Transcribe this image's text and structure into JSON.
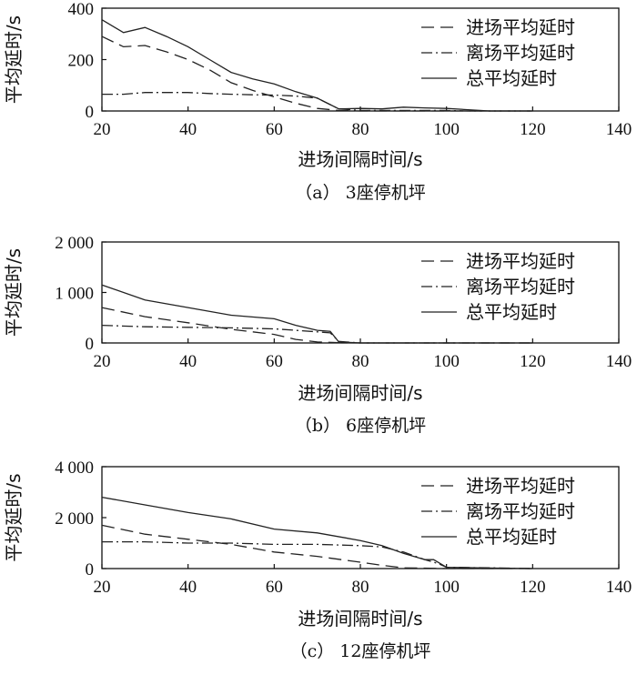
{
  "chart_data": [
    {
      "type": "line",
      "caption": "（a） 3座停机坪",
      "xlabel": "进场间隔时间/s",
      "ylabel": "平均延时/s",
      "xlim": [
        20,
        140
      ],
      "ylim": [
        0,
        400
      ],
      "xticks": [
        "20",
        "40",
        "60",
        "80",
        "100",
        "120",
        "140"
      ],
      "yticks": [
        {
          "value": 0,
          "label": "0"
        },
        {
          "value": 200,
          "label": "200"
        },
        {
          "value": 400,
          "label": "400"
        }
      ],
      "legend_position": "top-right",
      "series": [
        {
          "name": "进场平均延时",
          "style": "dashed",
          "color": "#222222",
          "x": [
            20,
            25,
            30,
            35,
            40,
            45,
            50,
            55,
            60,
            65,
            70,
            75,
            80,
            85,
            90,
            95,
            100,
            105,
            110,
            115,
            120
          ],
          "y": [
            290,
            250,
            255,
            230,
            200,
            160,
            110,
            80,
            55,
            30,
            10,
            2,
            0,
            0,
            0,
            0,
            0,
            0,
            0,
            0,
            0
          ]
        },
        {
          "name": "离场平均延时",
          "style": "dashdot",
          "color": "#222222",
          "x": [
            20,
            25,
            30,
            35,
            40,
            45,
            50,
            55,
            60,
            65,
            70,
            75,
            80,
            85,
            90,
            95,
            100,
            105,
            110,
            115,
            120
          ],
          "y": [
            65,
            65,
            72,
            72,
            72,
            68,
            65,
            63,
            62,
            58,
            50,
            8,
            2,
            2,
            2,
            2,
            2,
            0,
            0,
            0,
            0
          ]
        },
        {
          "name": "总平均延时",
          "style": "solid",
          "color": "#222222",
          "x": [
            20,
            25,
            30,
            35,
            40,
            45,
            50,
            55,
            60,
            65,
            70,
            75,
            80,
            85,
            90,
            95,
            100,
            105,
            110,
            115,
            120
          ],
          "y": [
            355,
            305,
            325,
            290,
            250,
            200,
            150,
            125,
            105,
            75,
            50,
            8,
            10,
            8,
            15,
            12,
            10,
            5,
            0,
            0,
            0
          ]
        }
      ]
    },
    {
      "type": "line",
      "caption": "（b） 6座停机坪",
      "xlabel": "进场间隔时间/s",
      "ylabel": "平均延时/s",
      "xlim": [
        20,
        140
      ],
      "ylim": [
        0,
        2000
      ],
      "xticks": [
        "20",
        "40",
        "60",
        "80",
        "100",
        "120",
        "140"
      ],
      "yticks": [
        {
          "value": 0,
          "label": "0"
        },
        {
          "value": 1000,
          "label": "1 000"
        },
        {
          "value": 2000,
          "label": "2 000"
        }
      ],
      "legend_position": "top-right",
      "series": [
        {
          "name": "进场平均延时",
          "style": "dashed",
          "color": "#222222",
          "x": [
            20,
            30,
            40,
            50,
            60,
            65,
            70,
            75,
            80,
            90,
            100,
            110,
            120
          ],
          "y": [
            700,
            520,
            400,
            270,
            170,
            70,
            20,
            5,
            0,
            0,
            0,
            0,
            0
          ]
        },
        {
          "name": "离场平均延时",
          "style": "dashdot",
          "color": "#222222",
          "x": [
            20,
            30,
            40,
            50,
            60,
            65,
            70,
            73,
            75,
            80,
            90,
            100,
            110,
            120
          ],
          "y": [
            350,
            320,
            310,
            300,
            280,
            250,
            220,
            200,
            30,
            0,
            0,
            0,
            0,
            0
          ]
        },
        {
          "name": "总平均延时",
          "style": "solid",
          "color": "#222222",
          "x": [
            20,
            30,
            40,
            50,
            60,
            65,
            70,
            73,
            75,
            80,
            90,
            100,
            110,
            120
          ],
          "y": [
            1150,
            850,
            700,
            550,
            480,
            350,
            250,
            230,
            20,
            0,
            0,
            0,
            0,
            0
          ]
        }
      ]
    },
    {
      "type": "line",
      "caption": "（c） 12座停机坪",
      "xlabel": "进场间隔时间/s",
      "ylabel": "平均延时/s",
      "xlim": [
        20,
        140
      ],
      "ylim": [
        0,
        4000
      ],
      "xticks": [
        "20",
        "40",
        "60",
        "80",
        "100",
        "120",
        "140"
      ],
      "yticks": [
        {
          "value": 0,
          "label": "0"
        },
        {
          "value": 2000,
          "label": "2 000"
        },
        {
          "value": 4000,
          "label": "4 000"
        }
      ],
      "legend_position": "top-right",
      "series": [
        {
          "name": "进场平均延时",
          "style": "dashed",
          "color": "#222222",
          "x": [
            20,
            30,
            40,
            50,
            60,
            70,
            80,
            85,
            90,
            100,
            110,
            120
          ],
          "y": [
            1700,
            1350,
            1150,
            950,
            650,
            480,
            250,
            130,
            30,
            0,
            0,
            0
          ]
        },
        {
          "name": "离场平均延时",
          "style": "dashdot",
          "color": "#222222",
          "x": [
            20,
            30,
            40,
            50,
            60,
            70,
            80,
            85,
            90,
            95,
            98,
            100,
            110,
            120
          ],
          "y": [
            1050,
            1050,
            1000,
            1000,
            950,
            950,
            900,
            850,
            650,
            350,
            200,
            50,
            30,
            0
          ]
        },
        {
          "name": "总平均延时",
          "style": "solid",
          "color": "#222222",
          "x": [
            20,
            30,
            40,
            50,
            60,
            70,
            80,
            85,
            90,
            95,
            97,
            100,
            110,
            120
          ],
          "y": [
            2800,
            2500,
            2200,
            1950,
            1550,
            1400,
            1100,
            900,
            600,
            350,
            350,
            50,
            20,
            0
          ]
        }
      ]
    }
  ]
}
